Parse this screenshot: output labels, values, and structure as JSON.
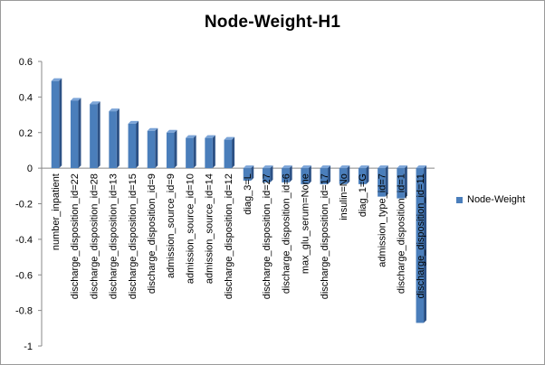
{
  "chart_data": {
    "type": "bar",
    "title": "Node-Weight-H1",
    "xlabel": "",
    "ylabel": "",
    "ylim": [
      -1,
      0.6
    ],
    "yticks": [
      0.6,
      0.4,
      0.2,
      0,
      -0.2,
      -0.4,
      -0.6,
      -0.8,
      -1
    ],
    "grid": false,
    "legend_position": "right",
    "categories": [
      "number_inpatient",
      "discharge_disposition_id=22",
      "discharge_disposition_id=28",
      "discharge_disposition_id=13",
      "discharge_disposition_id=15",
      "discharge_disposition_id=9",
      "admission_source_id=9",
      "admission_source_id=10",
      "admission_source_id=14",
      "discharge_disposition_id=12",
      "diag_3=L",
      "discharge_disposition_id=27",
      "discharge_disposition_id=6",
      "max_glu_serum=None",
      "discharge_disposition_id=17",
      "insulin=No",
      "diag_1=G",
      "admission_type_id=7",
      "discharge_disposition_id=1",
      "discharge_disposition_id=11"
    ],
    "series": [
      {
        "name": "Node-Weight",
        "values": [
          0.49,
          0.38,
          0.36,
          0.32,
          0.25,
          0.21,
          0.2,
          0.17,
          0.17,
          0.16,
          -0.07,
          -0.08,
          -0.08,
          -0.09,
          -0.09,
          -0.09,
          -0.09,
          -0.16,
          -0.17,
          -0.87
        ]
      }
    ],
    "colors": {
      "bar_front": "#4a7ebb",
      "bar_side": "#2c5185",
      "bar_top": "#7ca5d8",
      "axis": "#888888",
      "tick_text": "#000000"
    }
  }
}
